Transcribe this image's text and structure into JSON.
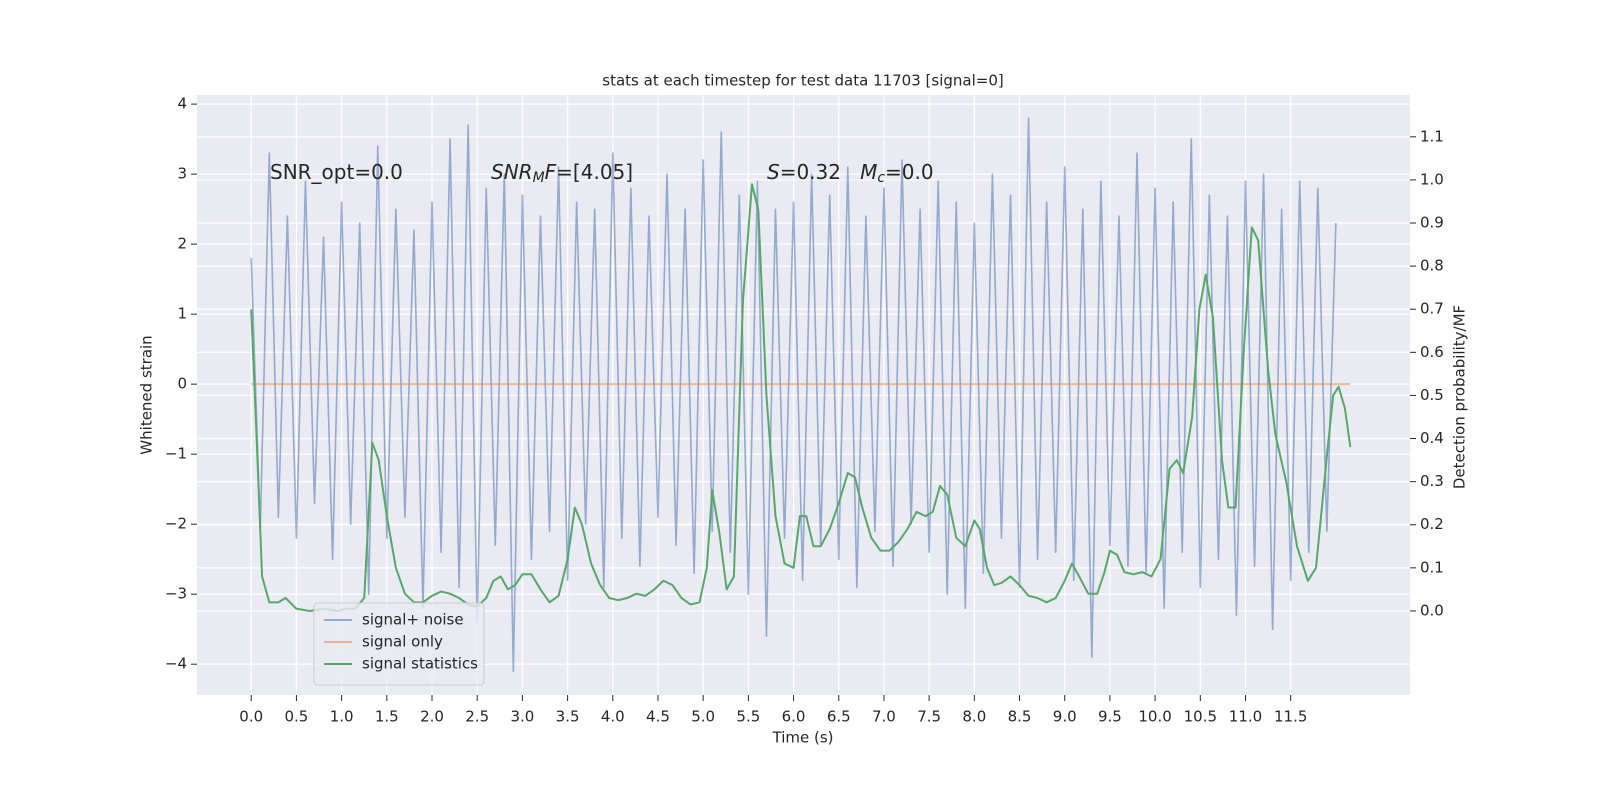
{
  "chart_data": {
    "type": "line",
    "title": "stats at each timestep for test data 11703 [signal=0]",
    "xlabel": "Time (s)",
    "ylabel": "Whitened strain",
    "y2label": "Detection probability/MF",
    "annotations": [
      [
        "SNR_opt=0.0"
      ],
      [
        "SNR",
        "M",
        "F",
        "=[4.05]"
      ],
      [
        "S",
        "=0.32   ",
        "M",
        "c",
        "=0.0"
      ]
    ],
    "xlim": [
      -0.6,
      12.82
    ],
    "ylim": [
      -4.44,
      4.13
    ],
    "y2lim": [
      -0.195,
      1.197
    ],
    "xticks": [
      {
        "value": 0,
        "label": "0.0"
      },
      {
        "value": 0.5,
        "label": "0.5"
      },
      {
        "value": 1,
        "label": "1.0"
      },
      {
        "value": 1.5,
        "label": "1.5"
      },
      {
        "value": 2,
        "label": "2.0"
      },
      {
        "value": 2.5,
        "label": "2.5"
      },
      {
        "value": 3,
        "label": "3.0"
      },
      {
        "value": 3.5,
        "label": "3.5"
      },
      {
        "value": 4,
        "label": "4.0"
      },
      {
        "value": 4.5,
        "label": "4.5"
      },
      {
        "value": 5,
        "label": "5.0"
      },
      {
        "value": 5.5,
        "label": "5.5"
      },
      {
        "value": 6,
        "label": "6.0"
      },
      {
        "value": 6.5,
        "label": "6.5"
      },
      {
        "value": 7,
        "label": "7.0"
      },
      {
        "value": 7.5,
        "label": "7.5"
      },
      {
        "value": 8,
        "label": "8.0"
      },
      {
        "value": 8.5,
        "label": "8.5"
      },
      {
        "value": 9,
        "label": "9.0"
      },
      {
        "value": 9.5,
        "label": "9.5"
      },
      {
        "value": 10,
        "label": "10.0"
      },
      {
        "value": 10.5,
        "label": "10.5"
      },
      {
        "value": 11,
        "label": "11.0"
      },
      {
        "value": 11.5,
        "label": "11.5"
      }
    ],
    "yticks": [
      {
        "value": -4,
        "label": "−4"
      },
      {
        "value": -3,
        "label": "−3"
      },
      {
        "value": -2,
        "label": "−2"
      },
      {
        "value": -1,
        "label": "−1"
      },
      0,
      1,
      2,
      3,
      4
    ],
    "y2ticks": [
      {
        "value": 0,
        "label": "0.0"
      },
      {
        "value": 0.1,
        "label": "0.1"
      },
      {
        "value": 0.2,
        "label": "0.2"
      },
      {
        "value": 0.3,
        "label": "0.3"
      },
      {
        "value": 0.4,
        "label": "0.4"
      },
      {
        "value": 0.5,
        "label": "0.5"
      },
      {
        "value": 0.6,
        "label": "0.6"
      },
      {
        "value": 0.7,
        "label": "0.7"
      },
      {
        "value": 0.8,
        "label": "0.8"
      },
      {
        "value": 0.9,
        "label": "0.9"
      },
      {
        "value": 1,
        "label": "1.0"
      },
      {
        "value": 1.1,
        "label": "1.1"
      }
    ],
    "grid": true,
    "legend": "lower left",
    "series": [
      {
        "name": "signal+ noise",
        "color": "#4c72b0",
        "x": [
          0,
          0.1,
          0.2,
          0.3,
          0.4,
          0.5,
          0.6,
          0.7,
          0.8,
          0.9,
          1,
          1.1,
          1.2,
          1.3,
          1.4,
          1.5,
          1.6,
          1.7,
          1.8,
          1.9,
          2,
          2.1,
          2.2,
          2.3,
          2.4,
          2.5,
          2.6,
          2.7,
          2.8,
          2.9,
          3,
          3.1,
          3.2,
          3.3,
          3.4,
          3.5,
          3.6,
          3.7,
          3.8,
          3.9,
          4,
          4.1,
          4.2,
          4.3,
          4.4,
          4.5,
          4.6,
          4.7,
          4.8,
          4.9,
          5,
          5.1,
          5.2,
          5.3,
          5.4,
          5.5,
          5.6,
          5.7,
          5.8,
          5.9,
          6,
          6.1,
          6.2,
          6.3,
          6.4,
          6.5,
          6.6,
          6.7,
          6.8,
          6.9,
          7,
          7.1,
          7.2,
          7.3,
          7.4,
          7.5,
          7.6,
          7.7,
          7.8,
          7.9,
          8,
          8.1,
          8.2,
          8.3,
          8.4,
          8.5,
          8.6,
          8.7,
          8.8,
          8.9,
          9,
          9.1,
          9.2,
          9.3,
          9.4,
          9.5,
          9.6,
          9.7,
          9.8,
          9.9,
          10,
          10.1,
          10.2,
          10.3,
          10.4,
          10.5,
          10.6,
          10.7,
          10.8,
          10.9,
          11,
          11.1,
          11.2,
          11.3,
          11.4,
          11.5,
          11.6,
          11.7,
          11.8,
          11.9,
          12
        ],
        "values": [
          1.8,
          -2.1,
          3.3,
          -1.9,
          2.4,
          -2.2,
          2.9,
          -1.7,
          2.1,
          -2.5,
          2.6,
          -2.0,
          2.3,
          -3.0,
          3.4,
          -2.2,
          2.5,
          -1.9,
          2.2,
          -3.2,
          2.6,
          -2.4,
          3.5,
          -2.9,
          3.7,
          -3.4,
          2.8,
          -2.3,
          3.0,
          -4.1,
          2.7,
          -2.5,
          2.4,
          -2.1,
          3.1,
          -2.8,
          2.6,
          -2.0,
          2.5,
          -2.9,
          3.3,
          -2.2,
          2.8,
          -2.6,
          2.4,
          -1.9,
          3.0,
          -2.3,
          2.5,
          -2.7,
          3.2,
          -2.1,
          3.6,
          -2.4,
          2.7,
          -3.0,
          2.9,
          -3.6,
          2.5,
          -2.2,
          2.6,
          -2.8,
          3.0,
          -2.3,
          2.7,
          -2.5,
          3.1,
          -2.9,
          2.4,
          -2.1,
          2.8,
          -2.6,
          3.2,
          -2.0,
          2.5,
          -2.4,
          2.9,
          -3.0,
          2.6,
          -3.2,
          2.3,
          -2.7,
          3.0,
          -2.2,
          2.7,
          -2.9,
          3.8,
          -2.5,
          2.6,
          -2.4,
          3.1,
          -2.8,
          2.5,
          -3.9,
          2.9,
          -2.3,
          2.4,
          -2.6,
          3.3,
          -2.7,
          2.8,
          -3.2,
          2.6,
          -2.4,
          3.5,
          -2.9,
          2.7,
          -2.5,
          2.4,
          -3.3,
          2.9,
          -2.6,
          3.0,
          -3.5,
          2.5,
          -2.8,
          2.9,
          -2.4,
          2.8,
          -2.1,
          2.3
        ]
      },
      {
        "name": "signal only",
        "color": "#dd8452",
        "x": [
          0,
          12.16
        ],
        "values": [
          0,
          0
        ]
      },
      {
        "name": "signal statistics",
        "color": "#55a868",
        "axis": "y2",
        "x": [
          0,
          0.06,
          0.12,
          0.2,
          0.3,
          0.38,
          0.5,
          0.65,
          0.8,
          0.95,
          1.05,
          1.15,
          1.25,
          1.34,
          1.41,
          1.5,
          1.6,
          1.7,
          1.8,
          1.9,
          2.0,
          2.1,
          2.2,
          2.3,
          2.4,
          2.5,
          2.6,
          2.68,
          2.76,
          2.84,
          2.92,
          3.0,
          3.1,
          3.2,
          3.3,
          3.4,
          3.5,
          3.58,
          3.66,
          3.76,
          3.86,
          3.96,
          4.06,
          4.16,
          4.26,
          4.36,
          4.46,
          4.56,
          4.66,
          4.76,
          4.86,
          4.96,
          5.04,
          5.1,
          5.18,
          5.26,
          5.34,
          5.44,
          5.54,
          5.61,
          5.7,
          5.8,
          5.9,
          6.0,
          6.07,
          6.14,
          6.22,
          6.3,
          6.4,
          6.5,
          6.6,
          6.68,
          6.76,
          6.86,
          6.96,
          7.06,
          7.16,
          7.26,
          7.36,
          7.46,
          7.54,
          7.62,
          7.7,
          7.8,
          7.9,
          8.0,
          8.06,
          8.14,
          8.22,
          8.3,
          8.4,
          8.5,
          8.6,
          8.7,
          8.8,
          8.9,
          9.0,
          9.08,
          9.16,
          9.26,
          9.36,
          9.44,
          9.5,
          9.58,
          9.66,
          9.76,
          9.86,
          9.96,
          10.06,
          10.16,
          10.24,
          10.31,
          10.41,
          10.49,
          10.56,
          10.64,
          10.74,
          10.81,
          10.89,
          10.98,
          11.07,
          11.14,
          11.25,
          11.33,
          11.45,
          11.57,
          11.69,
          11.78,
          11.91,
          11.97,
          12.03,
          12.1,
          12.16
        ],
        "values": [
          0.7,
          0.4,
          0.08,
          0.02,
          0.02,
          0.03,
          0.005,
          0.0,
          0.005,
          0.0,
          0.005,
          0.005,
          0.03,
          0.39,
          0.35,
          0.22,
          0.1,
          0.04,
          0.02,
          0.02,
          0.035,
          0.045,
          0.04,
          0.03,
          0.015,
          0.01,
          0.03,
          0.07,
          0.08,
          0.05,
          0.06,
          0.085,
          0.085,
          0.05,
          0.02,
          0.035,
          0.12,
          0.24,
          0.2,
          0.11,
          0.06,
          0.03,
          0.025,
          0.03,
          0.04,
          0.035,
          0.05,
          0.07,
          0.06,
          0.03,
          0.015,
          0.02,
          0.1,
          0.28,
          0.18,
          0.05,
          0.08,
          0.72,
          0.99,
          0.93,
          0.5,
          0.22,
          0.11,
          0.1,
          0.22,
          0.22,
          0.15,
          0.15,
          0.19,
          0.25,
          0.32,
          0.31,
          0.24,
          0.17,
          0.14,
          0.14,
          0.16,
          0.19,
          0.23,
          0.22,
          0.23,
          0.29,
          0.27,
          0.17,
          0.15,
          0.21,
          0.19,
          0.1,
          0.06,
          0.065,
          0.08,
          0.06,
          0.035,
          0.03,
          0.02,
          0.03,
          0.07,
          0.11,
          0.08,
          0.04,
          0.04,
          0.09,
          0.14,
          0.13,
          0.09,
          0.085,
          0.09,
          0.08,
          0.12,
          0.33,
          0.35,
          0.32,
          0.45,
          0.7,
          0.78,
          0.68,
          0.35,
          0.24,
          0.24,
          0.6,
          0.89,
          0.86,
          0.56,
          0.41,
          0.3,
          0.15,
          0.07,
          0.1,
          0.38,
          0.5,
          0.52,
          0.47,
          0.38
        ]
      }
    ]
  }
}
